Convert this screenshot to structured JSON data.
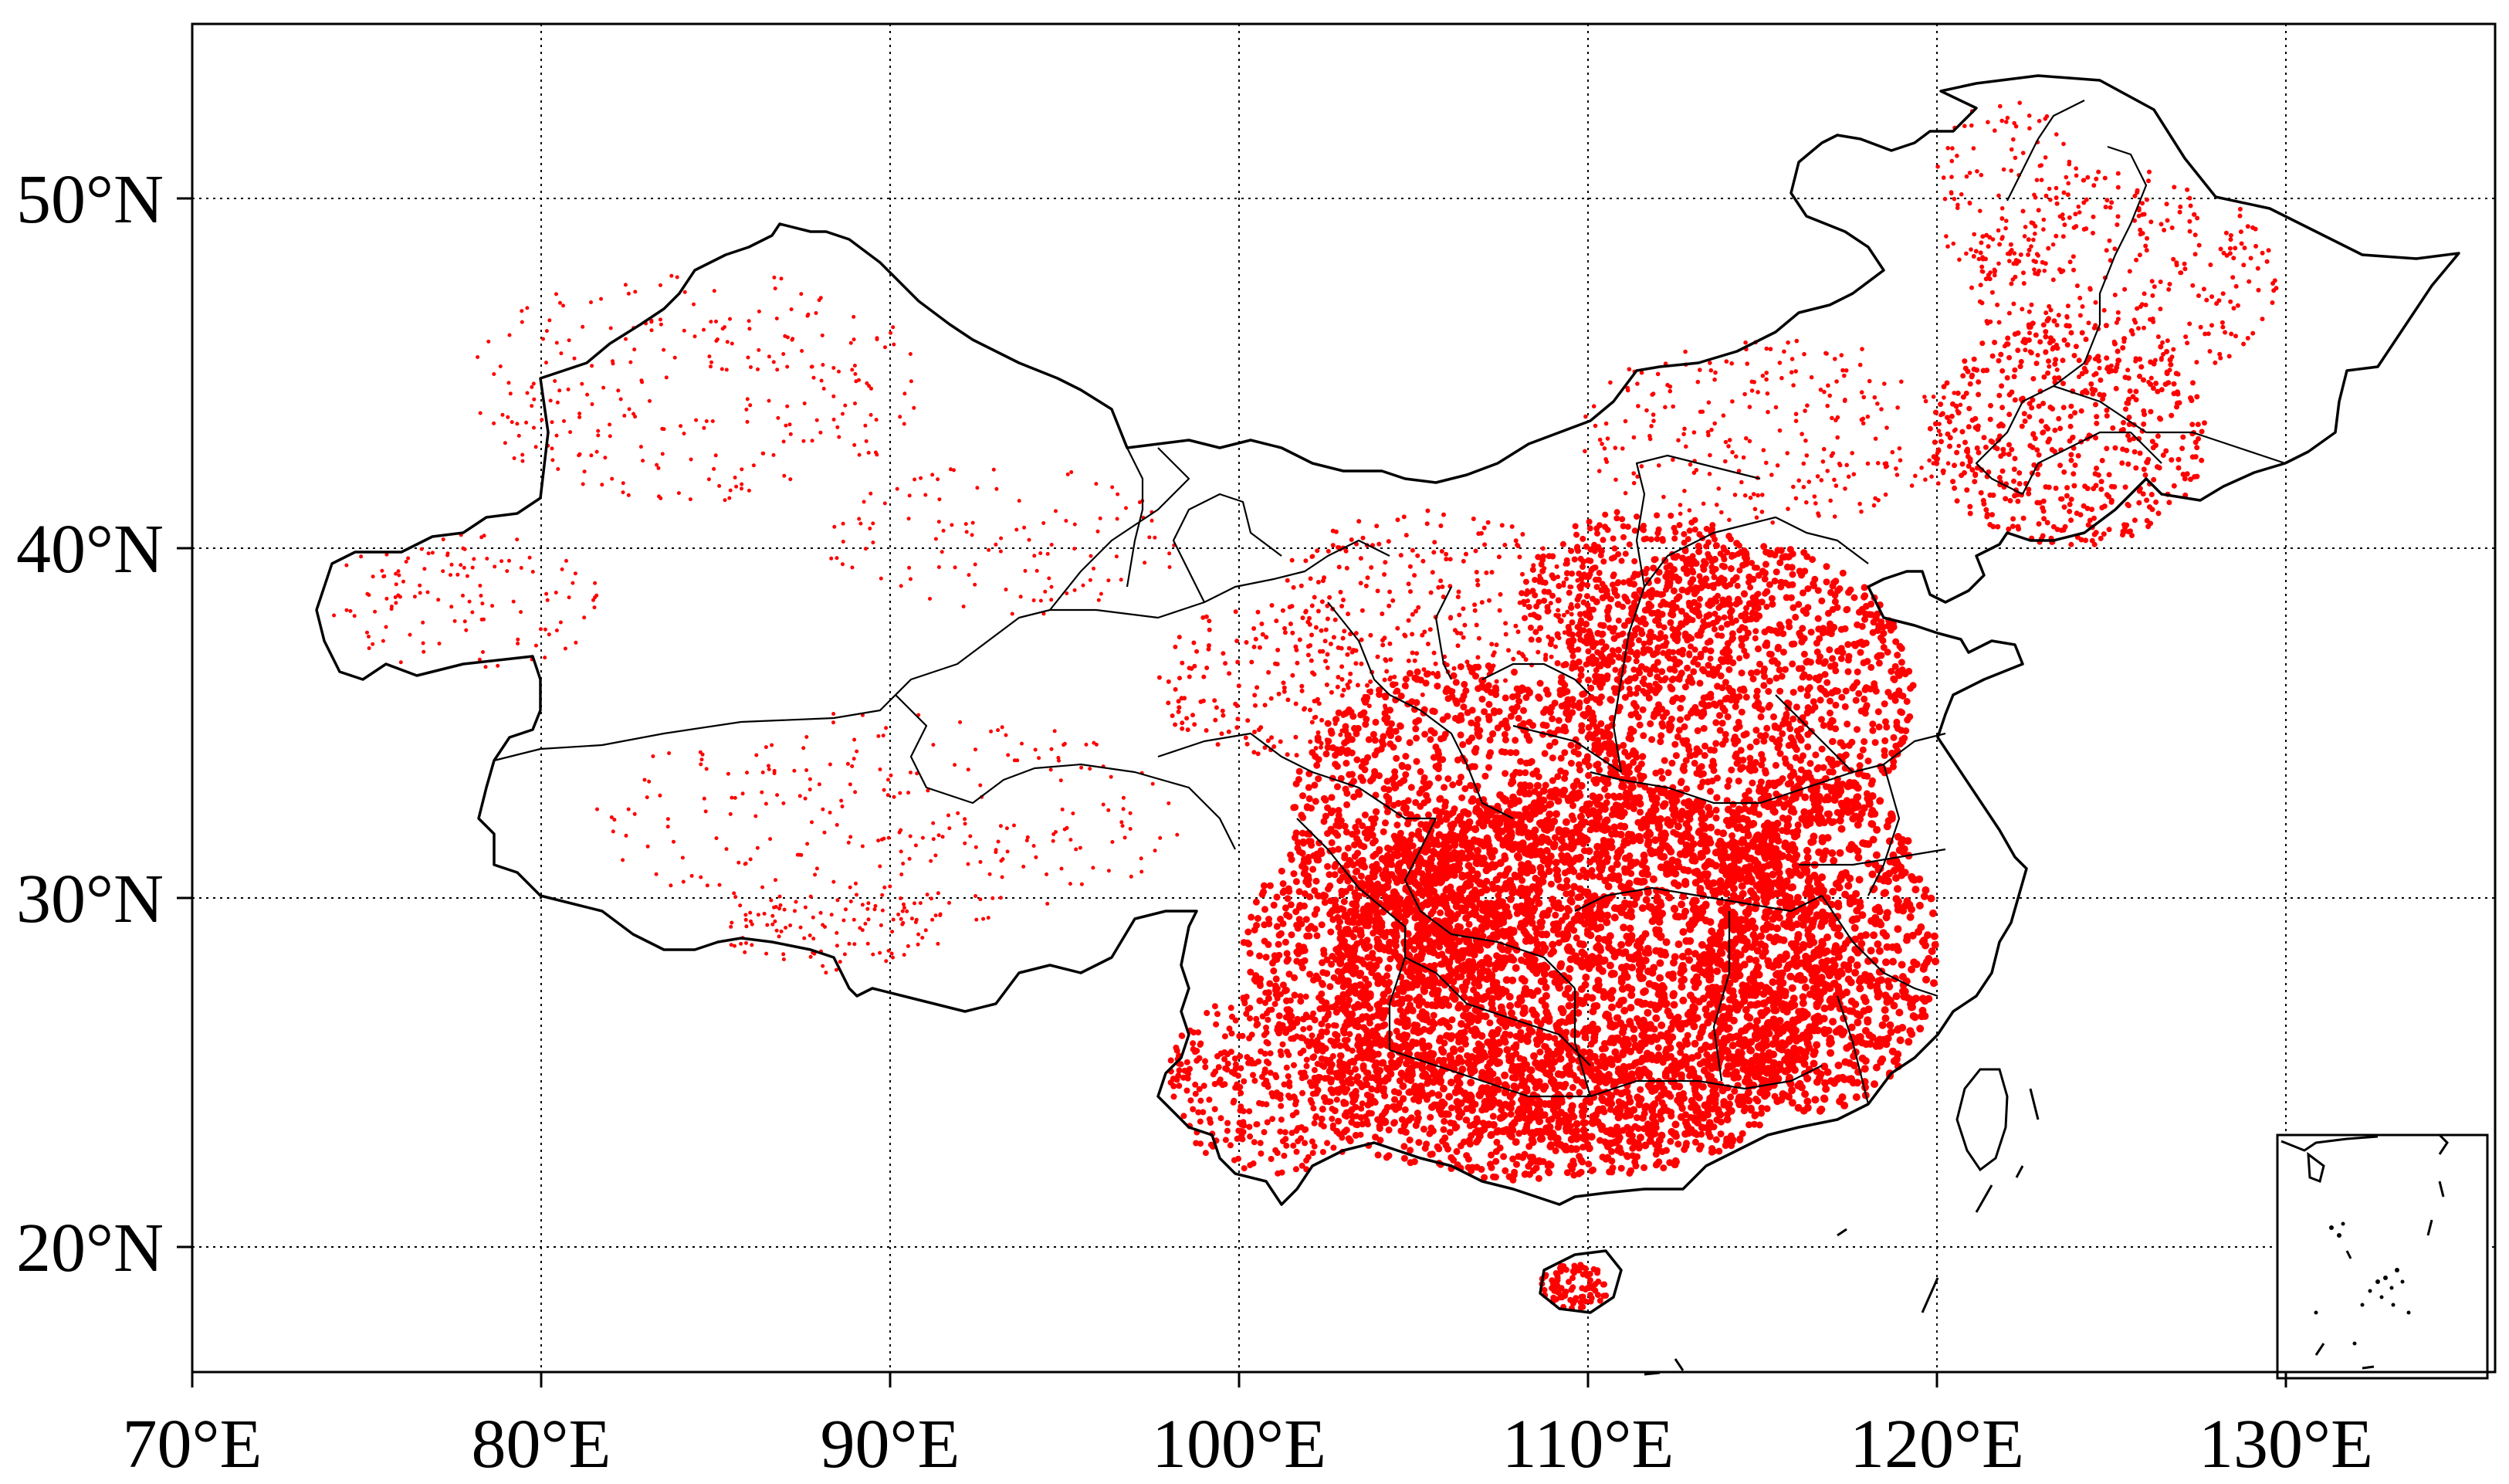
{
  "map": {
    "x_ticks": [
      "70°E",
      "80°E",
      "90°E",
      "100°E",
      "110°E",
      "120°E",
      "130°E"
    ],
    "y_ticks": [
      "50°N",
      "40°N",
      "30°N",
      "20°N"
    ],
    "point_color": "#ff0000",
    "border_color": "#000000",
    "grid": true,
    "inset": "bottom-right",
    "extent": {
      "lon": [
        70,
        136
      ],
      "lat": [
        15.5,
        55
      ]
    }
  }
}
